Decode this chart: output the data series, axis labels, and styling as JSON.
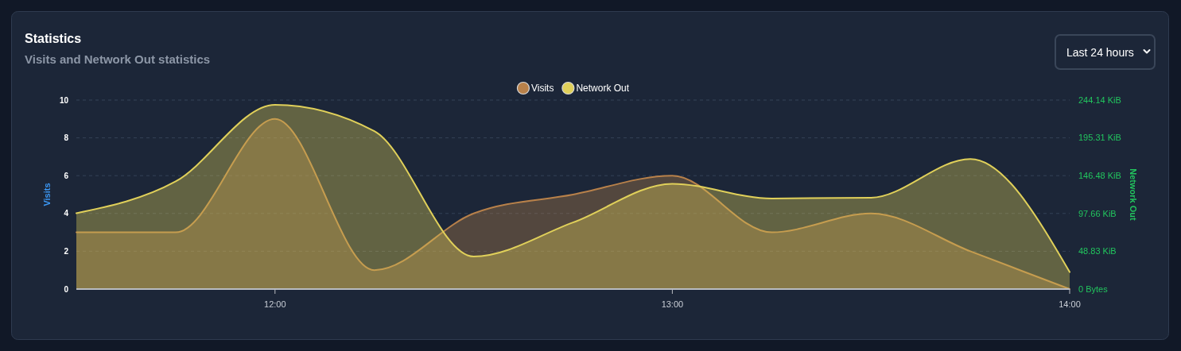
{
  "chart_data": {
    "type": "area",
    "title": "Statistics",
    "subtitle": "Visits and Network Out statistics",
    "annotations": [
      "Last 24 hours"
    ],
    "ylabel": "Visits",
    "y2label": "Network Out",
    "x": [
      11.5,
      11.75,
      12,
      12.25,
      12.5,
      12.75,
      13,
      13.25,
      13.5,
      13.75,
      14
    ],
    "xlim": [
      11.5,
      14
    ],
    "xticks": [
      {
        "value": 12,
        "label": "12:00"
      },
      {
        "value": 13,
        "label": "13:00"
      },
      {
        "value": 14,
        "label": "14:00"
      }
    ],
    "ylim": [
      0,
      10
    ],
    "yticks": [
      0,
      2,
      4,
      6,
      8,
      10
    ],
    "y2lim": [
      0,
      244.14
    ],
    "y2ticks": [
      {
        "value": 0,
        "label": "0 Bytes"
      },
      {
        "value": 48.83,
        "label": "48.83 KiB"
      },
      {
        "value": 97.66,
        "label": "97.66 KiB"
      },
      {
        "value": 146.48,
        "label": "146.48 KiB"
      },
      {
        "value": 195.31,
        "label": "195.31 KiB"
      },
      {
        "value": 244.14,
        "label": "244.14 KiB"
      }
    ],
    "series": [
      {
        "name": "Visits",
        "color": "#b8814a",
        "values": [
          3,
          3,
          9,
          1,
          4,
          5,
          6,
          3,
          4,
          2,
          0
        ]
      },
      {
        "name": "Network Out",
        "color": "#e0d05a",
        "axis": "y2",
        "values": [
          98,
          139,
          238,
          204,
          42,
          86,
          136,
          117,
          118,
          168,
          22
        ]
      }
    ],
    "grid": "y",
    "legend": "top"
  }
}
